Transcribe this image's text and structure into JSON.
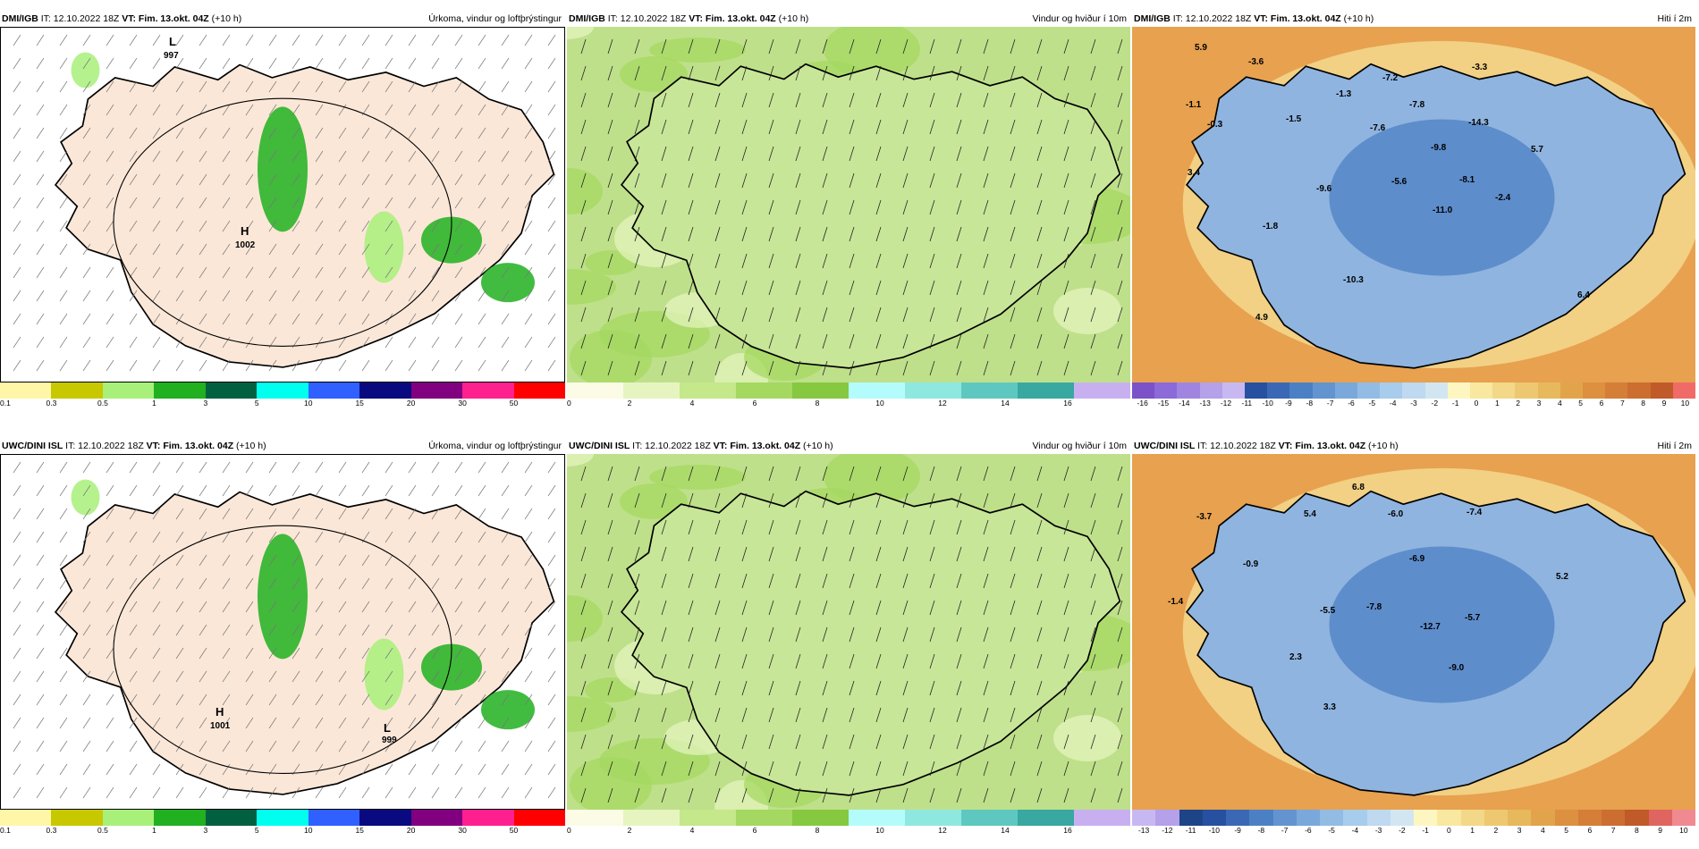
{
  "colors": {
    "precip_scale": [
      "#fff6a8",
      "#c8c800",
      "#a8f07a",
      "#20b020",
      "#006040",
      "#00ffee",
      "#3060ff",
      "#0a0a80",
      "#800080",
      "#ff2090",
      "#ff0000"
    ],
    "wind_scale": [
      "#fbfbe6",
      "#e6f5c0",
      "#c5e88a",
      "#a4d860",
      "#86c840",
      "#b4fcfc",
      "#8ee8e0",
      "#5ec8c0",
      "#38a8a0",
      "#c8b0f0"
    ],
    "temp_scale_top": [
      "#7b52c8",
      "#8c6ad8",
      "#a085e0",
      "#b5a0ea",
      "#c8b8f2",
      "#2850a0",
      "#3a68b4",
      "#4c80c4",
      "#6494d0",
      "#7aa8da",
      "#92bce4",
      "#a8cceb",
      "#bed9f0",
      "#d2e6f2",
      "#fdf6c0",
      "#f8e8a0",
      "#f2d888",
      "#eec870",
      "#e8b85c",
      "#e2a44a",
      "#dc9040",
      "#d47e38",
      "#cc6e30",
      "#c05a28",
      "#f06a68"
    ],
    "temp_scale_bottom": [
      "#c8b8f2",
      "#b5a0ea",
      "#1e4488",
      "#2850a0",
      "#3a68b4",
      "#4c80c4",
      "#6494d0",
      "#7aa8da",
      "#92bce4",
      "#a8cceb",
      "#bed9f0",
      "#d2e6f2",
      "#fdf6c0",
      "#f8e8a0",
      "#f2d888",
      "#eec870",
      "#e8b85c",
      "#e2a44a",
      "#dc9040",
      "#d47e38",
      "#cc6e30",
      "#c05a28",
      "#e06460",
      "#f08a90"
    ]
  },
  "panels": [
    {
      "model": "DMI/IGB",
      "it": "IT: 12.10.2022 18Z",
      "vt": "VT: Fim. 13.okt. 04Z",
      "lead": "(+10 h)",
      "title": "Úrkoma, vindur og loftþrýstingur",
      "scale": [
        "0.1",
        "0.3",
        "0.5",
        "1",
        "3",
        "5",
        "10",
        "15",
        "20",
        "30",
        "50"
      ],
      "pressure": [
        {
          "text": "L",
          "big": true
        },
        {
          "text": "997",
          "big": false
        },
        {
          "text": "H",
          "big": true
        },
        {
          "text": "1002",
          "big": false
        }
      ]
    },
    {
      "model": "DMI/IGB",
      "it": "IT: 12.10.2022 18Z",
      "vt": "VT: Fim. 13.okt. 04Z",
      "lead": "(+10 h)",
      "title": "Vindur og hviður í 10m",
      "scale": [
        "0",
        "2",
        "4",
        "6",
        "8",
        "10",
        "12",
        "14",
        "16"
      ]
    },
    {
      "model": "DMI/IGB",
      "it": "IT: 12.10.2022 18Z",
      "vt": "VT: Fim. 13.okt. 04Z",
      "lead": "(+10 h)",
      "title": "Hiti í 2m",
      "scale": [
        "-16",
        "-15",
        "-14",
        "-13",
        "-12",
        "-11",
        "-10",
        "-9",
        "-8",
        "-7",
        "-6",
        "-5",
        "-4",
        "-3",
        "-2",
        "-1",
        "0",
        "1",
        "2",
        "3",
        "4",
        "5",
        "6",
        "7",
        "8",
        "9",
        "10"
      ],
      "values": [
        "5.9",
        "-3.6",
        "-1.1",
        "-0.3",
        "-1.3",
        "-7.2",
        "-7.8",
        "-3.3",
        "-1.5",
        "-7.6",
        "-14.3",
        "-9.8",
        "5.7",
        "3.4",
        "-9.6",
        "-5.6",
        "-8.1",
        "-2.4",
        "-11.0",
        "-1.8",
        "-10.3",
        "6.4",
        "4.9"
      ]
    },
    {
      "model": "UWC/DINI ISL",
      "it": "IT: 12.10.2022 18Z",
      "vt": "VT: Fim. 13.okt. 04Z",
      "lead": "(+10 h)",
      "title": "Úrkoma, vindur og loftþrýstingur",
      "scale": [
        "0.1",
        "0.3",
        "0.5",
        "1",
        "3",
        "5",
        "10",
        "15",
        "20",
        "30",
        "50"
      ],
      "pressure": [
        {
          "text": "H",
          "big": true
        },
        {
          "text": "1001",
          "big": false
        },
        {
          "text": "L",
          "big": true
        },
        {
          "text": "999",
          "big": false
        }
      ]
    },
    {
      "model": "UWC/DINI ISL",
      "it": "IT: 12.10.2022 18Z",
      "vt": "VT: Fim. 13.okt. 04Z",
      "lead": "(+10 h)",
      "title": "Vindur og hviður í 10m",
      "scale": [
        "0",
        "2",
        "4",
        "6",
        "8",
        "10",
        "12",
        "14",
        "16"
      ]
    },
    {
      "model": "UWC/DINI ISL",
      "it": "IT: 12.10.2022 18Z",
      "vt": "VT: Fim. 13.okt. 04Z",
      "lead": "(+10 h)",
      "title": "Hiti í 2m",
      "scale": [
        "-13",
        "-12",
        "-11",
        "-10",
        "-9",
        "-8",
        "-7",
        "-6",
        "-5",
        "-4",
        "-3",
        "-2",
        "-1",
        "0",
        "1",
        "2",
        "3",
        "4",
        "5",
        "6",
        "7",
        "8",
        "9",
        "10"
      ],
      "values": [
        "-3.7",
        "6.8",
        "5.4",
        "-6.0",
        "-7.4",
        "-0.9",
        "-6.9",
        "5.2",
        "-1.4",
        "-5.5",
        "-7.8",
        "-12.7",
        "-5.7",
        "2.3",
        "-9.0",
        "3.3"
      ]
    }
  ]
}
